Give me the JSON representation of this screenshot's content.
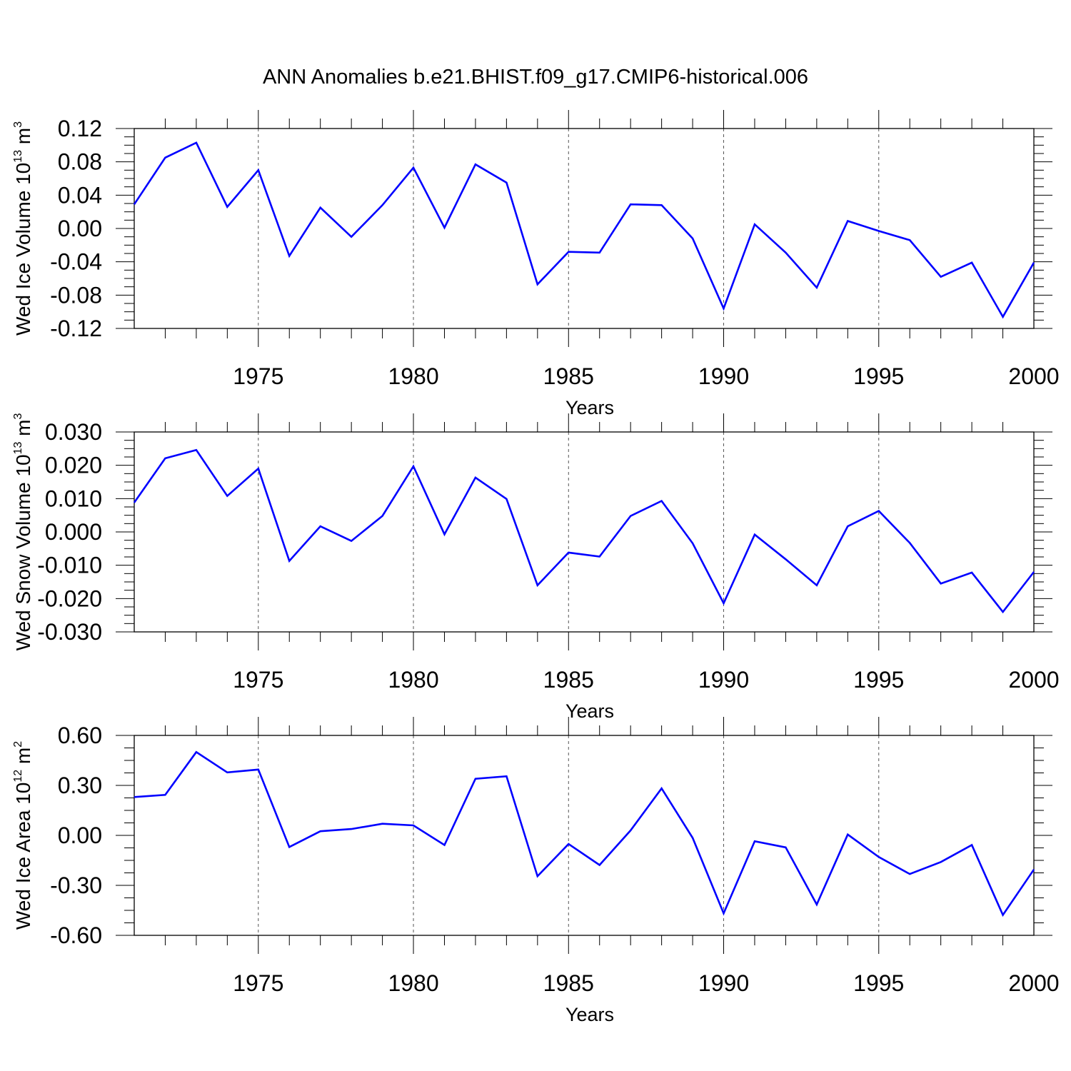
{
  "title": "ANN Anomalies b.e21.BHIST.f09_g17.CMIP6-historical.006",
  "colors": {
    "line": "#0000ff",
    "axis": "#000000",
    "grid": "#555555"
  },
  "chart_data": [
    {
      "type": "line",
      "ylabel": {
        "text": "Wed Ice Volume 10",
        "exp": "13",
        "unit": " m",
        "unit_exp": "3"
      },
      "xlabel": "Years",
      "xlim": [
        1971,
        2000
      ],
      "ylim": [
        -0.12,
        0.12
      ],
      "yticks": [
        "0.12",
        "0.08",
        "0.04",
        "0.00",
        "-0.04",
        "-0.08",
        "-0.12"
      ],
      "yticks_values": [
        0.12,
        0.08,
        0.04,
        0.0,
        -0.04,
        -0.08,
        -0.12
      ],
      "xticks": [
        "1975",
        "1980",
        "1985",
        "1990",
        "1995",
        "2000"
      ],
      "xticks_values": [
        1975,
        1980,
        1985,
        1990,
        1995,
        2000
      ],
      "grid": "vertical dashed at major x ticks",
      "series": [
        {
          "x": [
            1971,
            1972,
            1973,
            1974,
            1975,
            1976,
            1977,
            1978,
            1979,
            1980,
            1981,
            1982,
            1983,
            1984,
            1985,
            1986,
            1987,
            1988,
            1989,
            1990,
            1991,
            1992,
            1993,
            1994,
            1995,
            1996,
            1997,
            1998,
            1999,
            2000
          ],
          "values": [
            0.029,
            0.085,
            0.103,
            0.026,
            0.07,
            -0.033,
            0.025,
            -0.01,
            0.028,
            0.073,
            0.001,
            0.077,
            0.055,
            -0.067,
            -0.028,
            -0.029,
            0.029,
            0.028,
            -0.012,
            -0.096,
            0.005,
            -0.029,
            -0.071,
            0.009,
            -0.003,
            -0.014,
            -0.058,
            -0.041,
            -0.106,
            -0.041
          ]
        }
      ]
    },
    {
      "type": "line",
      "ylabel": {
        "text": "Wed Snow Volume 10",
        "exp": "13",
        "unit": " m",
        "unit_exp": "3"
      },
      "xlabel": "Years",
      "xlim": [
        1971,
        2000
      ],
      "ylim": [
        -0.03,
        0.03
      ],
      "yticks": [
        "0.030",
        "0.020",
        "0.010",
        "0.000",
        "-0.010",
        "-0.020",
        "-0.030"
      ],
      "yticks_values": [
        0.03,
        0.02,
        0.01,
        0.0,
        -0.01,
        -0.02,
        -0.03
      ],
      "xticks": [
        "1975",
        "1980",
        "1985",
        "1990",
        "1995",
        "2000"
      ],
      "xticks_values": [
        1975,
        1980,
        1985,
        1990,
        1995,
        2000
      ],
      "grid": "vertical dashed at major x ticks",
      "series": [
        {
          "x": [
            1971,
            1972,
            1973,
            1974,
            1975,
            1976,
            1977,
            1978,
            1979,
            1980,
            1981,
            1982,
            1983,
            1984,
            1985,
            1986,
            1987,
            1988,
            1989,
            1990,
            1991,
            1992,
            1993,
            1994,
            1995,
            1996,
            1997,
            1998,
            1999,
            2000
          ],
          "values": [
            0.0088,
            0.0221,
            0.0246,
            0.0108,
            0.019,
            -0.0087,
            0.0017,
            -0.0027,
            0.0048,
            0.0197,
            -0.0007,
            0.0163,
            0.0099,
            -0.016,
            -0.0062,
            -0.0074,
            0.0048,
            0.0093,
            -0.0034,
            -0.0214,
            -0.0008,
            -0.0082,
            -0.016,
            0.0017,
            0.0063,
            -0.0033,
            -0.0155,
            -0.0122,
            -0.024,
            -0.012
          ]
        }
      ]
    },
    {
      "type": "line",
      "ylabel": {
        "text": "Wed Ice Area 10",
        "exp": "12",
        "unit": " m",
        "unit_exp": "2"
      },
      "xlabel": "Years",
      "xlim": [
        1971,
        2000
      ],
      "ylim": [
        -0.6,
        0.6
      ],
      "yticks": [
        "0.60",
        "0.30",
        "0.00",
        "-0.30",
        "-0.60"
      ],
      "yticks_values": [
        0.6,
        0.3,
        0.0,
        -0.3,
        -0.6
      ],
      "xticks": [
        "1975",
        "1980",
        "1985",
        "1990",
        "1995",
        "2000"
      ],
      "xticks_values": [
        1975,
        1980,
        1985,
        1990,
        1995,
        2000
      ],
      "grid": "vertical dashed at major x ticks",
      "series": [
        {
          "x": [
            1971,
            1972,
            1973,
            1974,
            1975,
            1976,
            1977,
            1978,
            1979,
            1980,
            1981,
            1982,
            1983,
            1984,
            1985,
            1986,
            1987,
            1988,
            1989,
            1990,
            1991,
            1992,
            1993,
            1994,
            1995,
            1996,
            1997,
            1998,
            1999,
            2000
          ],
          "values": [
            0.23,
            0.243,
            0.5,
            0.378,
            0.395,
            -0.07,
            0.025,
            0.038,
            0.07,
            0.06,
            -0.058,
            0.34,
            0.355,
            -0.245,
            -0.052,
            -0.178,
            0.03,
            0.282,
            -0.015,
            -0.468,
            -0.035,
            -0.072,
            -0.415,
            0.005,
            -0.13,
            -0.232,
            -0.16,
            -0.058,
            -0.478,
            -0.205
          ]
        }
      ]
    }
  ]
}
